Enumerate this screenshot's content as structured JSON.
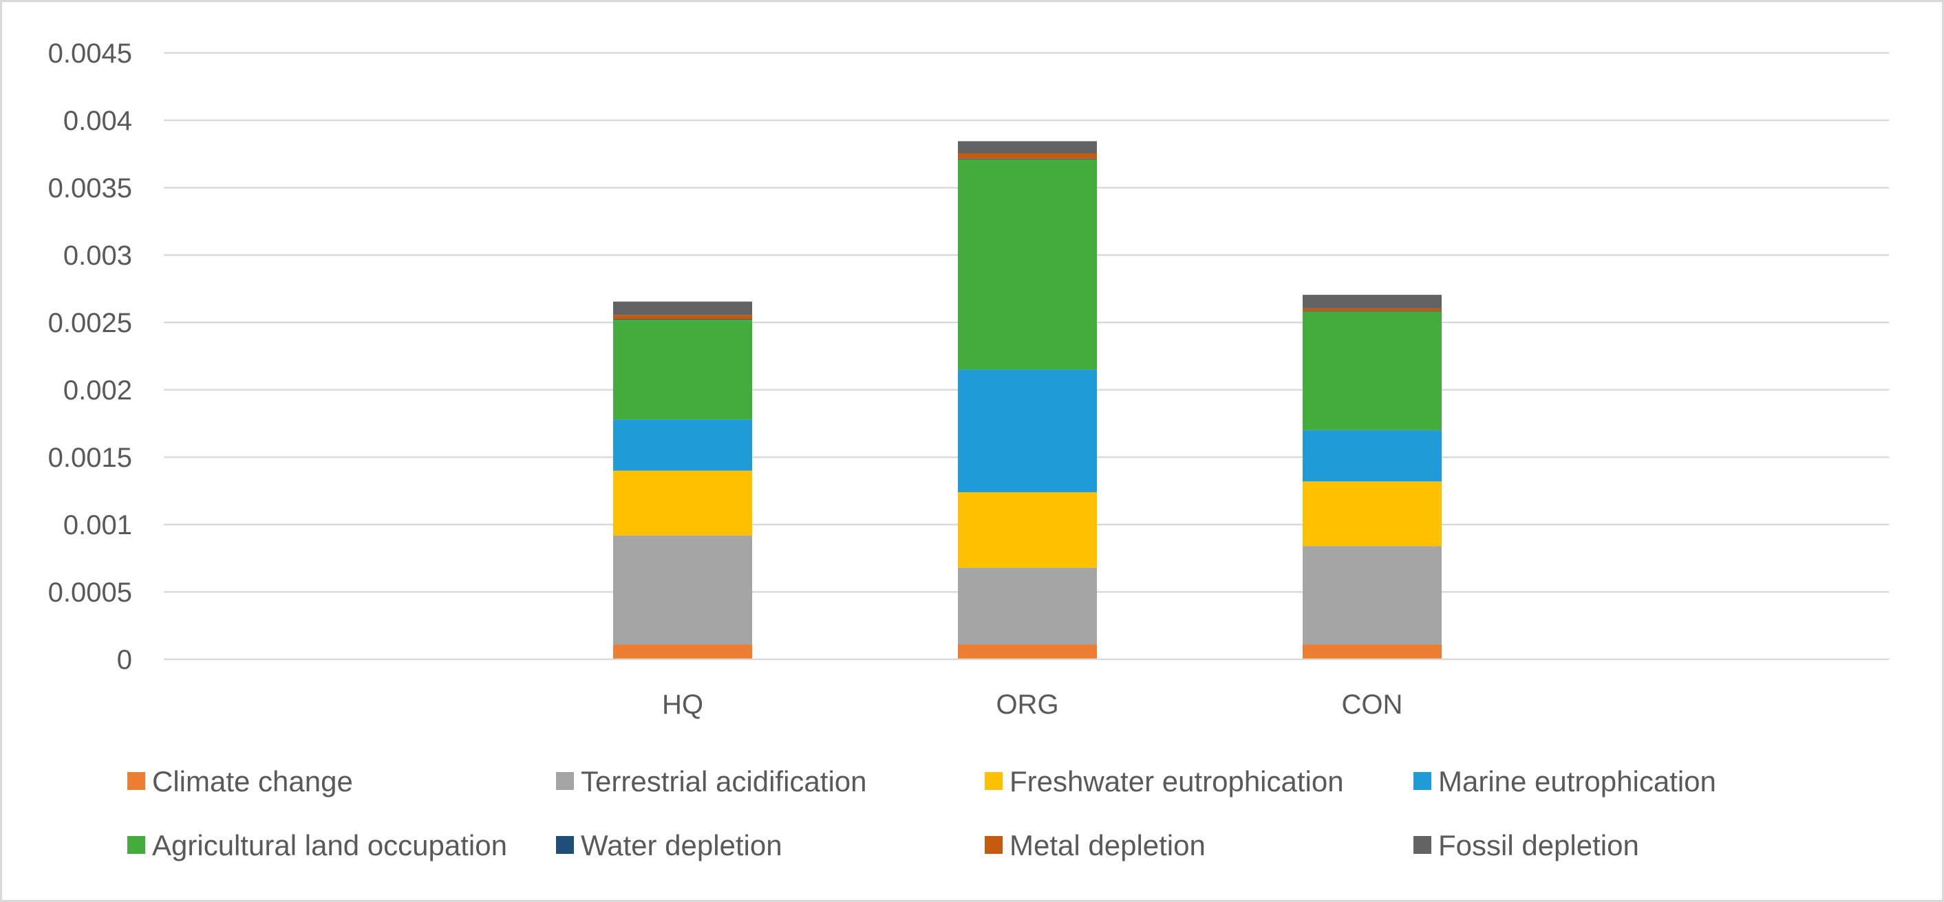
{
  "chart_data": {
    "type": "bar",
    "stacked": true,
    "title": "",
    "xlabel": "",
    "ylabel": "",
    "ylim": [
      0,
      0.0045
    ],
    "yticks": [
      "0",
      "0.0005",
      "0.001",
      "0.0015",
      "0.002",
      "0.0025",
      "0.003",
      "0.0035",
      "0.004",
      "0.0045"
    ],
    "grid": true,
    "legend_position": "bottom",
    "categories": [
      "HQ",
      "ORG",
      "CON"
    ],
    "series": [
      {
        "name": "Climate change",
        "color": "#ED7D31",
        "values": [
          0.00011,
          0.00011,
          0.00011
        ]
      },
      {
        "name": "Terrestrial acidification",
        "color": "#A5A5A5",
        "values": [
          0.00081,
          0.00057,
          0.00073
        ]
      },
      {
        "name": "Freshwater eutrophication",
        "color": "#FFC000",
        "values": [
          0.00048,
          0.00056,
          0.00048
        ]
      },
      {
        "name": "Marine eutrophication",
        "color": "#1F9BD7",
        "values": [
          0.00038,
          0.00091,
          0.00038
        ]
      },
      {
        "name": "Agricultural land occupation",
        "color": "#43AC3A",
        "values": [
          0.00074,
          0.00156,
          0.00088
        ]
      },
      {
        "name": "Water depletion",
        "color": "#1F4E79",
        "values": [
          5e-06,
          5e-06,
          5e-06
        ]
      },
      {
        "name": "Metal depletion",
        "color": "#C55A11",
        "values": [
          3e-05,
          4e-05,
          2e-05
        ]
      },
      {
        "name": "Fossil depletion",
        "color": "#636363",
        "values": [
          0.0001,
          9e-05,
          0.0001
        ]
      }
    ]
  }
}
